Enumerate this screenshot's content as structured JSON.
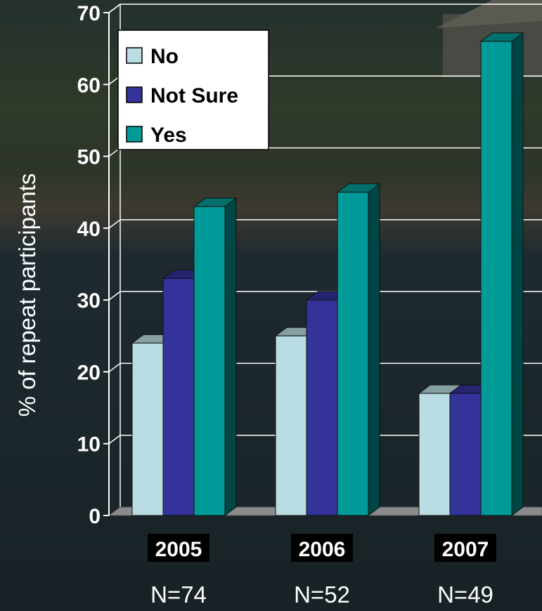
{
  "chart_data": {
    "type": "bar",
    "title": "",
    "xlabel": "",
    "ylabel": "% of repeat participants",
    "ylim": [
      0,
      70
    ],
    "yticks": [
      "0",
      "10",
      "20",
      "30",
      "40",
      "50",
      "60",
      "70"
    ],
    "categories": [
      "2005",
      "2006",
      "2007"
    ],
    "category_notes": [
      "N=74",
      "N=52",
      "N=49"
    ],
    "series": [
      {
        "name": "No",
        "color": "#b9dde2",
        "values": [
          24,
          25,
          17
        ]
      },
      {
        "name": "Not Sure",
        "color": "#33339a",
        "values": [
          33,
          30,
          17
        ]
      },
      {
        "name": "Yes",
        "color": "#009b98",
        "values": [
          43,
          45,
          66
        ]
      }
    ],
    "grid": true,
    "legend_position": "top-left",
    "style": "3d-bar"
  },
  "colors": {
    "background": "#1f2a2e",
    "gridline": "#ffffff",
    "text": "#ffffff",
    "floor": "#8a8a8a"
  }
}
